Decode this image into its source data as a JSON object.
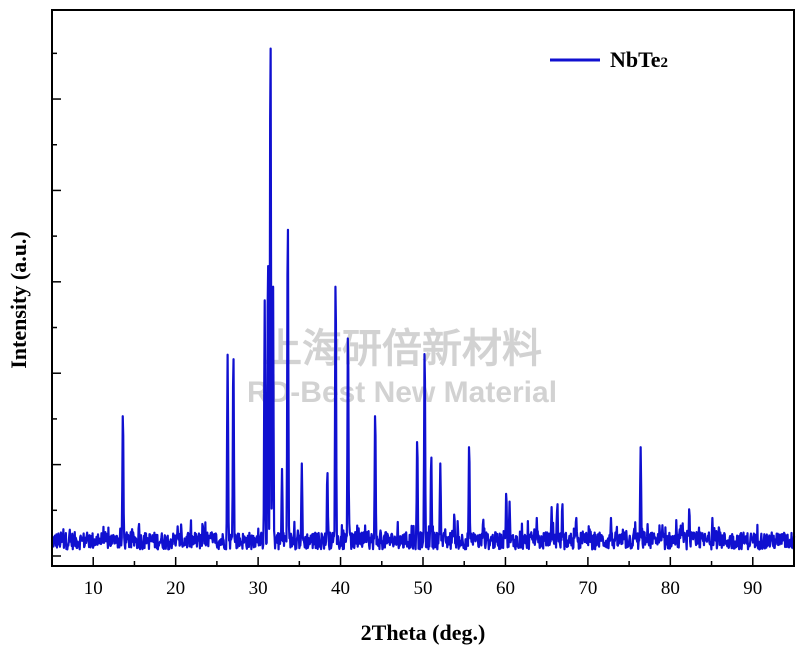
{
  "chart_data": {
    "type": "line",
    "title": "",
    "xlabel": "2Theta (deg.)",
    "ylabel": "Intensity (a.u.)",
    "xlim": [
      5,
      95
    ],
    "ylim": [
      0,
      100
    ],
    "xticks": [
      10,
      20,
      30,
      40,
      50,
      60,
      70,
      80,
      90
    ],
    "grid": false,
    "legend_position": "top-right",
    "line_color": "#1010d0",
    "series": [
      {
        "name": "NbTe2",
        "name_main": "NbTe",
        "name_sub": "2",
        "peaks": [
          [
            13.6,
            27
          ],
          [
            26.3,
            37
          ],
          [
            27.0,
            38
          ],
          [
            30.8,
            47
          ],
          [
            31.2,
            56
          ],
          [
            31.5,
            98
          ],
          [
            31.8,
            52
          ],
          [
            32.9,
            16
          ],
          [
            33.6,
            63
          ],
          [
            35.3,
            17
          ],
          [
            38.4,
            16
          ],
          [
            39.4,
            52
          ],
          [
            40.9,
            42
          ],
          [
            44.2,
            27
          ],
          [
            49.3,
            22
          ],
          [
            50.2,
            39
          ],
          [
            51.0,
            19
          ],
          [
            52.1,
            17
          ],
          [
            53.8,
            8
          ],
          [
            55.6,
            21
          ],
          [
            57.3,
            7
          ],
          [
            60.1,
            12
          ],
          [
            60.5,
            10
          ],
          [
            63.8,
            7
          ],
          [
            65.6,
            9
          ],
          [
            66.3,
            10
          ],
          [
            66.9,
            10
          ],
          [
            68.6,
            7
          ],
          [
            72.8,
            7
          ],
          [
            76.4,
            20
          ],
          [
            81.5,
            6
          ],
          [
            82.3,
            9
          ],
          [
            85.1,
            7
          ]
        ]
      }
    ],
    "watermark_line1": "上海研倍新材料",
    "watermark_line2": "RD-Best New Material"
  }
}
